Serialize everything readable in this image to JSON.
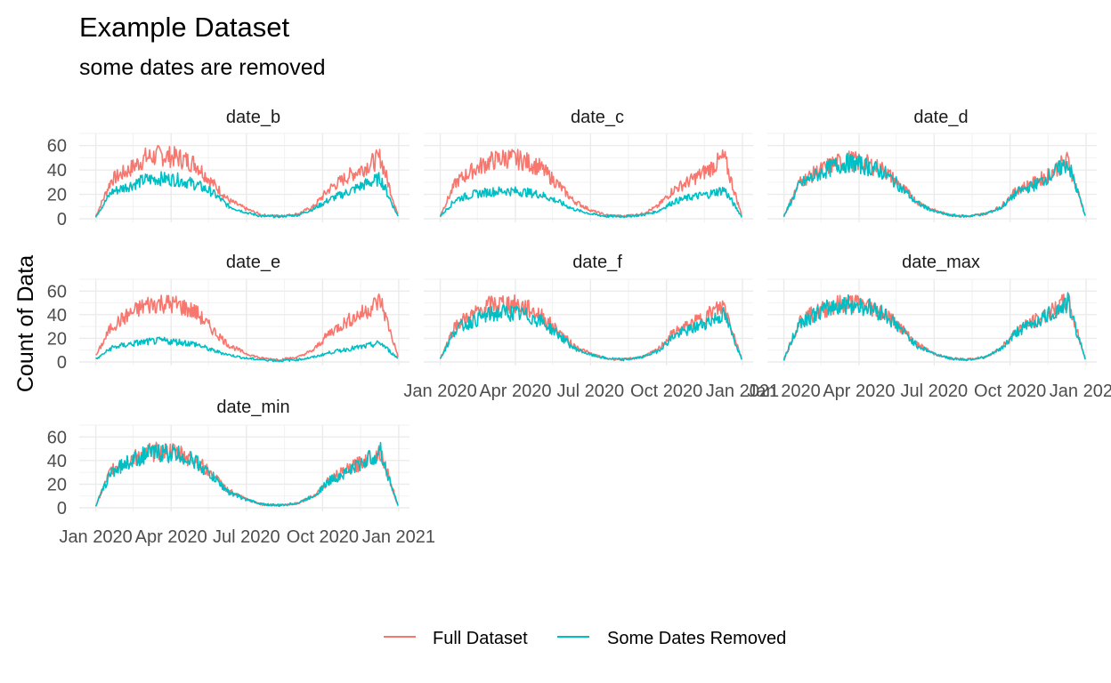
{
  "title": "Example Dataset",
  "subtitle": "some dates are removed",
  "colors": {
    "full": "#F8766D",
    "removed": "#00BFC4"
  },
  "chart_data": {
    "type": "line",
    "title": "Example Dataset",
    "subtitle": "some dates are removed",
    "xlabel": "",
    "ylabel": "Count of Data",
    "x_range": [
      "2020-01-01",
      "2020-12-31"
    ],
    "ylim": [
      0,
      70
    ],
    "y_ticks": [
      0,
      20,
      40,
      60
    ],
    "x_ticks": [
      "2020-01-01",
      "2020-04-01",
      "2020-07-01",
      "2020-10-01",
      "2021-01-01"
    ],
    "x_tick_labels": [
      "Jan 2020",
      "Apr 2020",
      "Jul 2020",
      "Oct 2020",
      "Jan 2021"
    ],
    "legend": {
      "position": "bottom",
      "entries": [
        "Full Dataset",
        "Some Dates Removed"
      ]
    },
    "grid": true,
    "panels": [
      {
        "name": "date_b",
        "series": [
          {
            "name": "Full Dataset",
            "x": [
              "2020-01-01",
              "2020-01-20",
              "2020-02-10",
              "2020-03-01",
              "2020-03-20",
              "2020-04-10",
              "2020-05-01",
              "2020-05-20",
              "2020-06-10",
              "2020-07-01",
              "2020-07-20",
              "2020-08-10",
              "2020-09-01",
              "2020-09-20",
              "2020-10-10",
              "2020-11-01",
              "2020-11-20",
              "2020-12-10",
              "2020-12-31"
            ],
            "y": [
              2,
              32,
              40,
              50,
              52,
              50,
              45,
              30,
              15,
              8,
              3,
              2,
              4,
              10,
              25,
              35,
              42,
              50,
              3
            ]
          },
          {
            "name": "Some Dates Removed",
            "x": [
              "2020-01-01",
              "2020-01-20",
              "2020-02-10",
              "2020-03-01",
              "2020-03-20",
              "2020-04-10",
              "2020-05-01",
              "2020-05-20",
              "2020-06-10",
              "2020-07-01",
              "2020-07-20",
              "2020-08-10",
              "2020-09-01",
              "2020-09-20",
              "2020-10-10",
              "2020-11-01",
              "2020-11-20",
              "2020-12-10",
              "2020-12-31"
            ],
            "y": [
              2,
              22,
              27,
              32,
              33,
              32,
              28,
              22,
              10,
              5,
              2,
              2,
              3,
              8,
              16,
              22,
              28,
              33,
              2
            ]
          }
        ]
      },
      {
        "name": "date_c",
        "series": [
          {
            "name": "Full Dataset",
            "x": [
              "2020-01-01",
              "2020-01-20",
              "2020-02-10",
              "2020-03-01",
              "2020-03-20",
              "2020-04-10",
              "2020-05-01",
              "2020-05-20",
              "2020-06-10",
              "2020-07-01",
              "2020-07-20",
              "2020-08-10",
              "2020-09-01",
              "2020-09-20",
              "2020-10-10",
              "2020-11-01",
              "2020-11-20",
              "2020-12-10",
              "2020-12-31"
            ],
            "y": [
              3,
              30,
              40,
              47,
              50,
              48,
              42,
              30,
              15,
              7,
              3,
              2,
              4,
              10,
              24,
              32,
              40,
              50,
              3
            ]
          },
          {
            "name": "Some Dates Removed",
            "x": [
              "2020-01-01",
              "2020-01-20",
              "2020-02-10",
              "2020-03-01",
              "2020-03-20",
              "2020-04-10",
              "2020-05-01",
              "2020-05-20",
              "2020-06-10",
              "2020-07-01",
              "2020-07-20",
              "2020-08-10",
              "2020-09-01",
              "2020-09-20",
              "2020-10-10",
              "2020-11-01",
              "2020-11-20",
              "2020-12-10",
              "2020-12-31"
            ],
            "y": [
              2,
              16,
              20,
              22,
              23,
              22,
              20,
              15,
              8,
              4,
              2,
              2,
              3,
              6,
              14,
              18,
              20,
              24,
              2
            ]
          }
        ]
      },
      {
        "name": "date_d",
        "series": [
          {
            "name": "Full Dataset",
            "x": [
              "2020-01-01",
              "2020-01-20",
              "2020-02-10",
              "2020-03-01",
              "2020-03-20",
              "2020-04-10",
              "2020-05-01",
              "2020-05-20",
              "2020-06-10",
              "2020-07-01",
              "2020-07-20",
              "2020-08-10",
              "2020-09-01",
              "2020-09-20",
              "2020-10-10",
              "2020-11-01",
              "2020-11-20",
              "2020-12-10",
              "2020-12-31"
            ],
            "y": [
              2,
              30,
              38,
              45,
              48,
              45,
              40,
              28,
              14,
              7,
              3,
              2,
              4,
              10,
              24,
              30,
              38,
              48,
              3
            ]
          },
          {
            "name": "Some Dates Removed",
            "x": [
              "2020-01-01",
              "2020-01-20",
              "2020-02-10",
              "2020-03-01",
              "2020-03-20",
              "2020-04-10",
              "2020-05-01",
              "2020-05-20",
              "2020-06-10",
              "2020-07-01",
              "2020-07-20",
              "2020-08-10",
              "2020-09-01",
              "2020-09-20",
              "2020-10-10",
              "2020-11-01",
              "2020-11-20",
              "2020-12-10",
              "2020-12-31"
            ],
            "y": [
              2,
              28,
              36,
              43,
              46,
              43,
              38,
              27,
              13,
              6,
              3,
              2,
              4,
              9,
              22,
              28,
              36,
              46,
              3
            ]
          }
        ]
      },
      {
        "name": "date_e",
        "series": [
          {
            "name": "Full Dataset",
            "x": [
              "2020-01-01",
              "2020-01-20",
              "2020-02-10",
              "2020-03-01",
              "2020-03-20",
              "2020-04-10",
              "2020-05-01",
              "2020-05-20",
              "2020-06-10",
              "2020-07-01",
              "2020-07-20",
              "2020-08-10",
              "2020-09-01",
              "2020-09-20",
              "2020-10-10",
              "2020-11-01",
              "2020-11-20",
              "2020-12-10",
              "2020-12-31"
            ],
            "y": [
              5,
              30,
              40,
              48,
              50,
              48,
              42,
              28,
              14,
              7,
              3,
              2,
              4,
              10,
              25,
              35,
              42,
              52,
              5
            ]
          },
          {
            "name": "Some Dates Removed",
            "x": [
              "2020-01-01",
              "2020-01-20",
              "2020-02-10",
              "2020-03-01",
              "2020-03-20",
              "2020-04-10",
              "2020-05-01",
              "2020-05-20",
              "2020-06-10",
              "2020-07-01",
              "2020-07-20",
              "2020-08-10",
              "2020-09-01",
              "2020-09-20",
              "2020-10-10",
              "2020-11-01",
              "2020-11-20",
              "2020-12-10",
              "2020-12-31"
            ],
            "y": [
              2,
              12,
              15,
              17,
              18,
              17,
              15,
              10,
              6,
              3,
              2,
              1,
              2,
              4,
              8,
              11,
              13,
              16,
              3
            ]
          }
        ]
      },
      {
        "name": "date_f",
        "series": [
          {
            "name": "Full Dataset",
            "x": [
              "2020-01-01",
              "2020-01-20",
              "2020-02-10",
              "2020-03-01",
              "2020-03-20",
              "2020-04-10",
              "2020-05-01",
              "2020-05-20",
              "2020-06-10",
              "2020-07-01",
              "2020-07-20",
              "2020-08-10",
              "2020-09-01",
              "2020-09-20",
              "2020-10-10",
              "2020-11-01",
              "2020-11-20",
              "2020-12-10",
              "2020-12-31"
            ],
            "y": [
              3,
              32,
              40,
              48,
              50,
              47,
              40,
              28,
              14,
              7,
              3,
              2,
              4,
              10,
              25,
              32,
              40,
              48,
              3
            ]
          },
          {
            "name": "Some Dates Removed",
            "x": [
              "2020-01-01",
              "2020-01-20",
              "2020-02-10",
              "2020-03-01",
              "2020-03-20",
              "2020-04-10",
              "2020-05-01",
              "2020-05-20",
              "2020-06-10",
              "2020-07-01",
              "2020-07-20",
              "2020-08-10",
              "2020-09-01",
              "2020-09-20",
              "2020-10-10",
              "2020-11-01",
              "2020-11-20",
              "2020-12-10",
              "2020-12-31"
            ],
            "y": [
              3,
              28,
              35,
              40,
              42,
              40,
              35,
              25,
              12,
              6,
              3,
              2,
              4,
              9,
              22,
              28,
              34,
              40,
              3
            ]
          }
        ]
      },
      {
        "name": "date_max",
        "series": [
          {
            "name": "Full Dataset",
            "x": [
              "2020-01-01",
              "2020-01-20",
              "2020-02-10",
              "2020-03-01",
              "2020-03-20",
              "2020-04-10",
              "2020-05-01",
              "2020-05-20",
              "2020-06-10",
              "2020-07-01",
              "2020-07-20",
              "2020-08-10",
              "2020-09-01",
              "2020-09-20",
              "2020-10-10",
              "2020-11-01",
              "2020-11-20",
              "2020-12-10",
              "2020-12-31"
            ],
            "y": [
              2,
              35,
              42,
              48,
              50,
              48,
              42,
              30,
              15,
              7,
              3,
              2,
              4,
              12,
              27,
              35,
              42,
              52,
              3
            ]
          },
          {
            "name": "Some Dates Removed",
            "x": [
              "2020-01-01",
              "2020-01-20",
              "2020-02-10",
              "2020-03-01",
              "2020-03-20",
              "2020-04-10",
              "2020-05-01",
              "2020-05-20",
              "2020-06-10",
              "2020-07-01",
              "2020-07-20",
              "2020-08-10",
              "2020-09-01",
              "2020-09-20",
              "2020-10-10",
              "2020-11-01",
              "2020-11-20",
              "2020-12-10",
              "2020-12-31"
            ],
            "y": [
              2,
              34,
              41,
              47,
              49,
              47,
              41,
              29,
              14,
              7,
              3,
              2,
              4,
              11,
              26,
              34,
              41,
              50,
              3
            ]
          }
        ]
      },
      {
        "name": "date_min",
        "series": [
          {
            "name": "Full Dataset",
            "x": [
              "2020-01-01",
              "2020-01-20",
              "2020-02-10",
              "2020-03-01",
              "2020-03-20",
              "2020-04-10",
              "2020-05-01",
              "2020-05-20",
              "2020-06-10",
              "2020-07-01",
              "2020-07-20",
              "2020-08-10",
              "2020-09-01",
              "2020-09-20",
              "2020-10-10",
              "2020-11-01",
              "2020-11-20",
              "2020-12-10",
              "2020-12-31"
            ],
            "y": [
              2,
              32,
              40,
              46,
              48,
              46,
              40,
              28,
              14,
              7,
              3,
              2,
              4,
              10,
              24,
              32,
              40,
              48,
              2
            ]
          },
          {
            "name": "Some Dates Removed",
            "x": [
              "2020-01-01",
              "2020-01-20",
              "2020-02-10",
              "2020-03-01",
              "2020-03-20",
              "2020-04-10",
              "2020-05-01",
              "2020-05-20",
              "2020-06-10",
              "2020-07-01",
              "2020-07-20",
              "2020-08-10",
              "2020-09-01",
              "2020-09-20",
              "2020-10-10",
              "2020-11-01",
              "2020-11-20",
              "2020-12-10",
              "2020-12-31"
            ],
            "y": [
              2,
              31,
              39,
              45,
              47,
              45,
              39,
              27,
              13,
              7,
              3,
              2,
              4,
              10,
              23,
              31,
              39,
              47,
              2
            ]
          }
        ]
      }
    ]
  }
}
